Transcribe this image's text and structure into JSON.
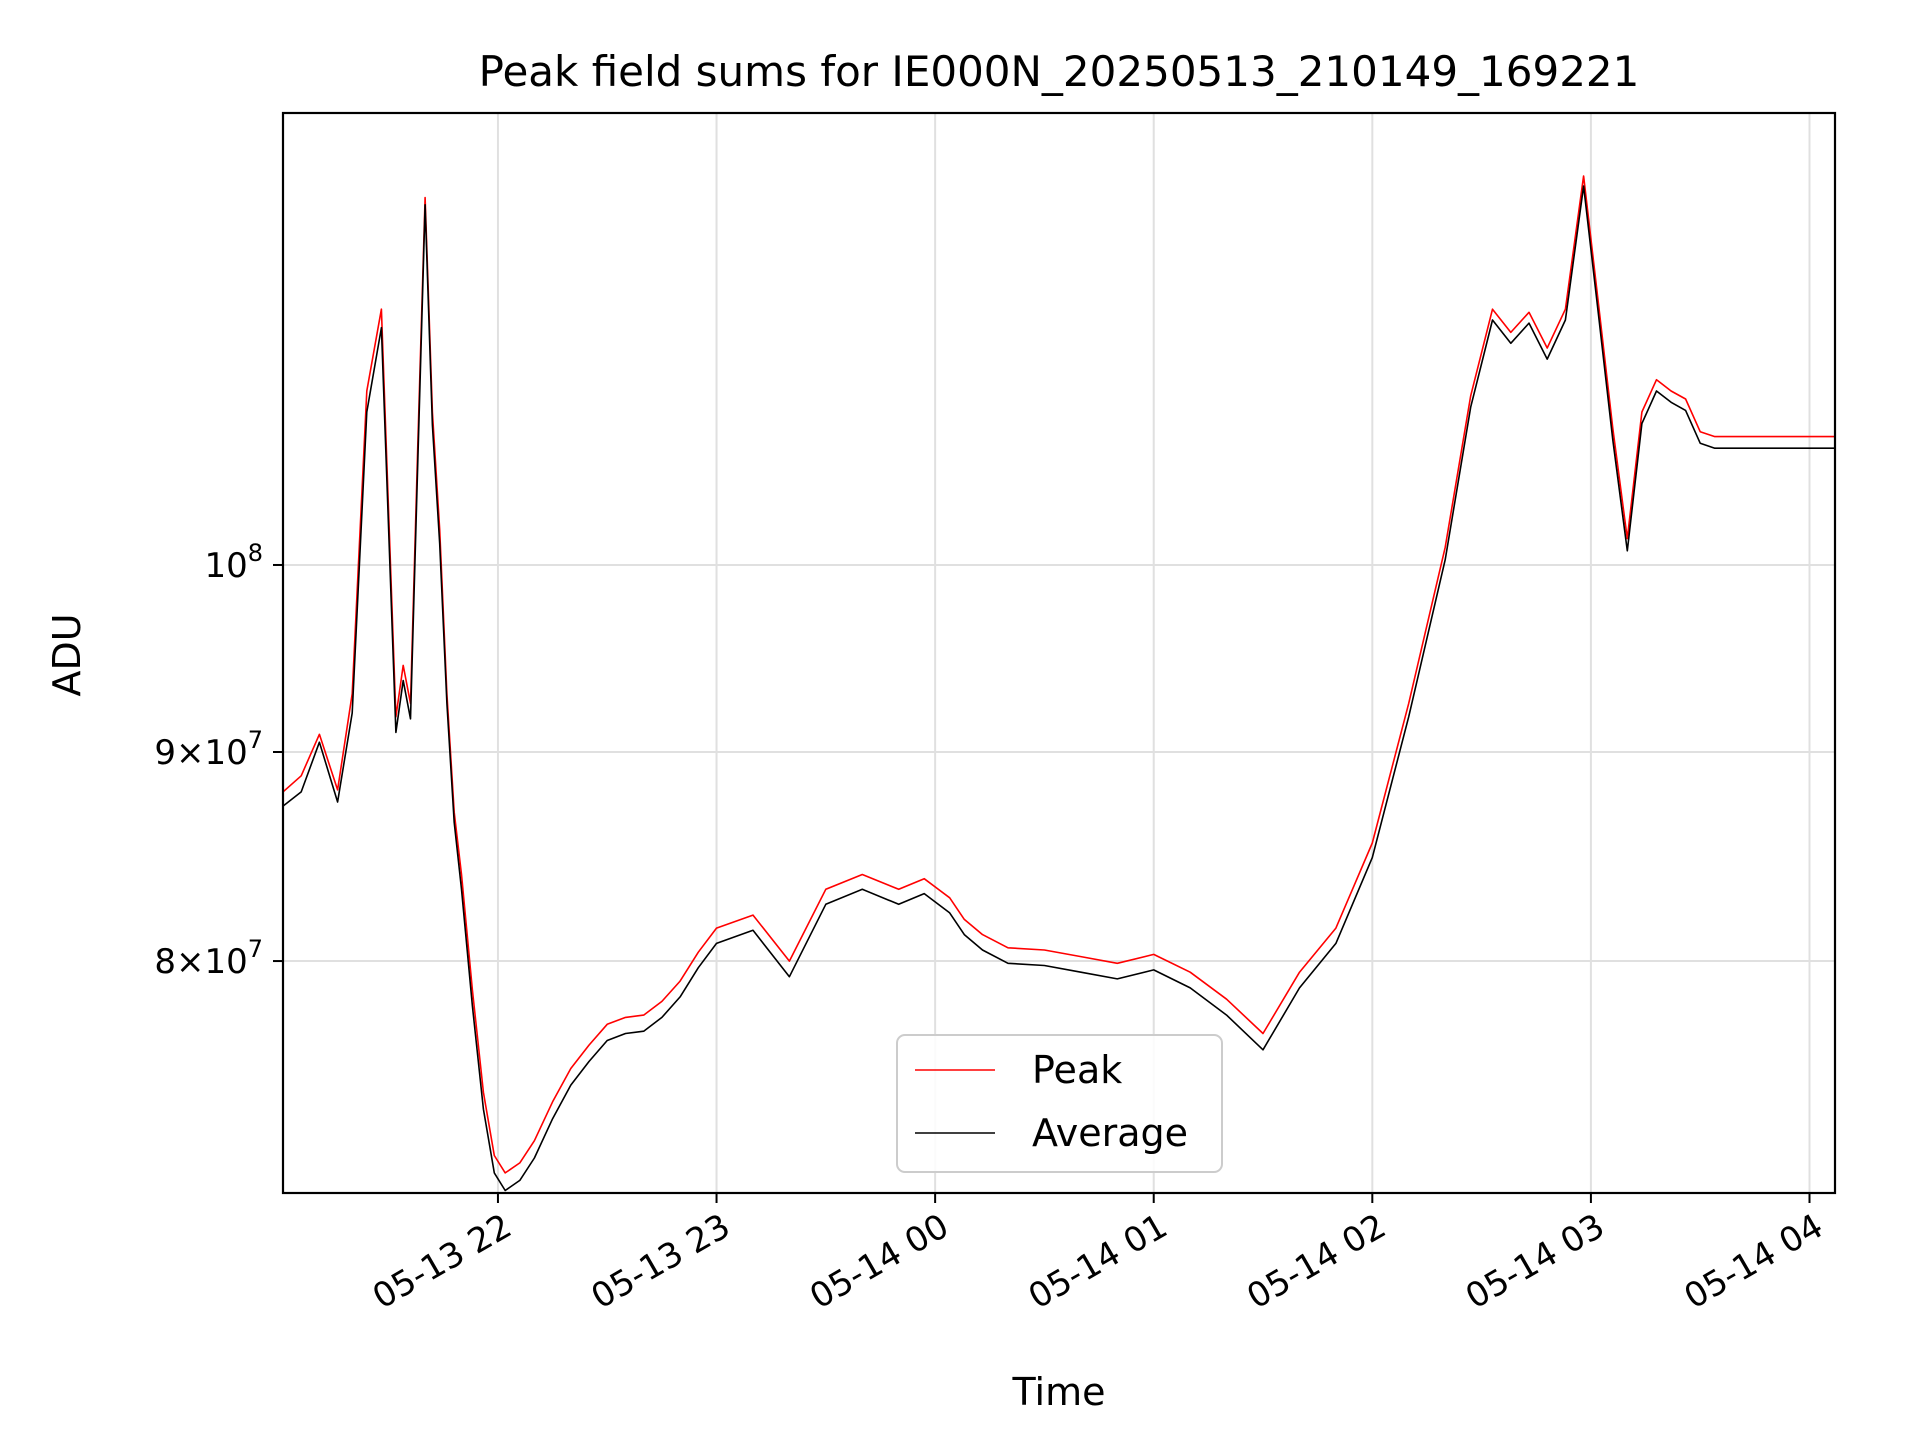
{
  "chart_data": {
    "type": "line",
    "title": "Peak field sums for IE000N_20250513_210149_169221",
    "xlabel": "Time",
    "ylabel": "ADU",
    "y_scale": "log",
    "xlim": [
      "2025-05-13 21:01",
      "2025-05-14 04:07"
    ],
    "ylim": [
      70200000,
      129000000
    ],
    "grid": true,
    "legend_position": "lower-center",
    "x_ticks": [
      {
        "value": "2025-05-13 22:00",
        "label": "05-13 22"
      },
      {
        "value": "2025-05-13 23:00",
        "label": "05-13 23"
      },
      {
        "value": "2025-05-14 00:00",
        "label": "05-14 00"
      },
      {
        "value": "2025-05-14 01:00",
        "label": "05-14 01"
      },
      {
        "value": "2025-05-14 02:00",
        "label": "05-14 02"
      },
      {
        "value": "2025-05-14 03:00",
        "label": "05-14 03"
      },
      {
        "value": "2025-05-14 04:00",
        "label": "05-14 04"
      }
    ],
    "y_ticks": [
      {
        "value": 80000000,
        "mantissa": "8",
        "exponent": "7"
      },
      {
        "value": 90000000,
        "mantissa": "9",
        "exponent": "7"
      },
      {
        "value": 100000000,
        "mantissa": "",
        "exponent": "8"
      }
    ],
    "x": [
      "2025-05-13 21:01",
      "2025-05-13 21:06",
      "2025-05-13 21:11",
      "2025-05-13 21:16",
      "2025-05-13 21:20",
      "2025-05-13 21:24",
      "2025-05-13 21:28",
      "2025-05-13 21:32",
      "2025-05-13 21:34",
      "2025-05-13 21:36",
      "2025-05-13 21:38",
      "2025-05-13 21:40",
      "2025-05-13 21:42",
      "2025-05-13 21:44",
      "2025-05-13 21:46",
      "2025-05-13 21:48",
      "2025-05-13 21:50",
      "2025-05-13 21:53",
      "2025-05-13 21:56",
      "2025-05-13 21:59",
      "2025-05-13 22:02",
      "2025-05-13 22:06",
      "2025-05-13 22:10",
      "2025-05-13 22:15",
      "2025-05-13 22:20",
      "2025-05-13 22:25",
      "2025-05-13 22:30",
      "2025-05-13 22:35",
      "2025-05-13 22:40",
      "2025-05-13 22:45",
      "2025-05-13 22:50",
      "2025-05-13 22:55",
      "2025-05-13 23:00",
      "2025-05-13 23:10",
      "2025-05-13 23:20",
      "2025-05-13 23:30",
      "2025-05-13 23:40",
      "2025-05-13 23:50",
      "2025-05-13 23:57",
      "2025-05-14 00:04",
      "2025-05-14 00:08",
      "2025-05-14 00:13",
      "2025-05-14 00:20",
      "2025-05-14 00:30",
      "2025-05-14 00:40",
      "2025-05-14 00:50",
      "2025-05-14 01:00",
      "2025-05-14 01:10",
      "2025-05-14 01:20",
      "2025-05-14 01:30",
      "2025-05-14 01:40",
      "2025-05-14 01:50",
      "2025-05-14 02:00",
      "2025-05-14 02:10",
      "2025-05-14 02:20",
      "2025-05-14 02:27",
      "2025-05-14 02:33",
      "2025-05-14 02:38",
      "2025-05-14 02:43",
      "2025-05-14 02:48",
      "2025-05-14 02:53",
      "2025-05-14 02:58",
      "2025-05-14 03:02",
      "2025-05-14 03:06",
      "2025-05-14 03:10",
      "2025-05-14 03:14",
      "2025-05-14 03:18",
      "2025-05-14 03:22",
      "2025-05-14 03:26",
      "2025-05-14 03:30",
      "2025-05-14 03:34",
      "2025-05-14 03:36",
      "2025-05-14 03:37",
      "2025-05-14 03:40",
      "2025-05-14 03:42",
      "2025-05-14 03:45",
      "2025-05-14 03:50",
      "2025-05-14 03:55",
      "2025-05-14 04:00",
      "2025-05-14 04:04",
      "2025-05-14 04:07"
    ],
    "series": [
      {
        "name": "Peak",
        "color": "#ff0000",
        "values": [
          88000000,
          88800000,
          90900000,
          88100000,
          93000000,
          110300000,
          115500000,
          91800000,
          94500000,
          92500000,
          107000000,
          123000000,
          109000000,
          102000000,
          93000000,
          87000000,
          84000000,
          78700000,
          74300000,
          71700000,
          71000000,
          71400000,
          72300000,
          73900000,
          75300000,
          76300000,
          77200000,
          77500000,
          77600000,
          78200000,
          79100000,
          80400000,
          81500000,
          82100000,
          80000000,
          83300000,
          84000000,
          83300000,
          83800000,
          82900000,
          81900000,
          81200000,
          80600000,
          80500000,
          80200000,
          79900000,
          80300000,
          79500000,
          78300000,
          76800000,
          79500000,
          81500000,
          85500000,
          92500000,
          101000000,
          110000000,
          115500000,
          114000000,
          115300000,
          113000000,
          115500000,
          124500000,
          116000000,
          108000000,
          101500000,
          109000000,
          111000000,
          110300000,
          109800000,
          107800000,
          107500000,
          107500000,
          107500000,
          107500000,
          107500000,
          107500000,
          107500000,
          107500000,
          107500000,
          107500000,
          107500000
        ],
        "stroke_width": 1.6
      },
      {
        "name": "Average",
        "color": "#000000",
        "values": [
          87300000,
          88000000,
          90500000,
          87500000,
          92000000,
          109000000,
          114300000,
          91000000,
          93700000,
          91700000,
          106000000,
          122500000,
          108200000,
          101200000,
          92500000,
          86500000,
          83300000,
          78000000,
          73600000,
          71000000,
          70300000,
          70700000,
          71600000,
          73200000,
          74600000,
          75600000,
          76500000,
          76800000,
          76900000,
          77500000,
          78400000,
          79700000,
          80800000,
          81400000,
          79300000,
          82600000,
          83300000,
          82600000,
          83100000,
          82200000,
          81200000,
          80500000,
          79900000,
          79800000,
          79500000,
          79200000,
          79600000,
          78800000,
          77600000,
          76100000,
          78800000,
          80800000,
          84800000,
          91800000,
          100300000,
          109300000,
          114800000,
          113300000,
          114600000,
          112300000,
          114800000,
          123800000,
          115300000,
          107300000,
          100800000,
          108300000,
          110300000,
          109600000,
          109100000,
          107100000,
          106800000,
          106800000,
          106800000,
          106800000,
          106800000,
          106800000,
          106800000,
          106800000,
          106800000,
          106800000,
          106800000
        ],
        "stroke_width": 1.6
      }
    ]
  }
}
